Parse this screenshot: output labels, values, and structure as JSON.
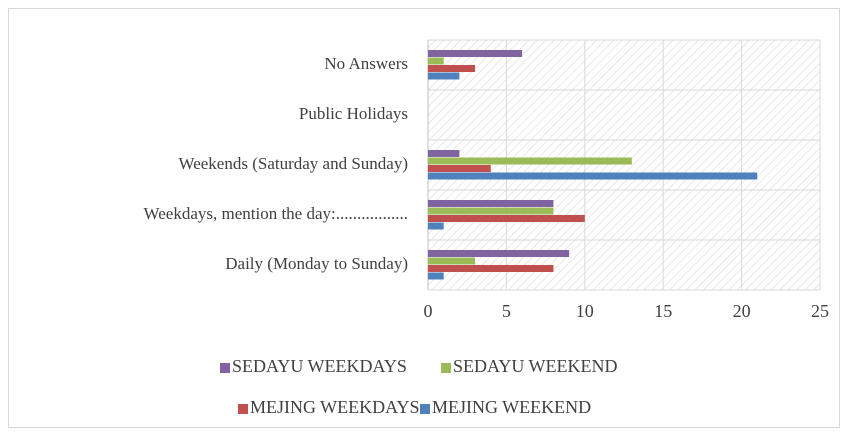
{
  "chart_data": {
    "type": "hbar",
    "categories": [
      "No Answers",
      "Public Holidays",
      "Weekends (Saturday and Sunday)",
      "Weekdays, mention the day:.................",
      "Daily (Monday to Sunday)"
    ],
    "series": [
      {
        "name": "SEDAYU WEEKDAYS",
        "color": "#8064a2",
        "values": [
          6,
          0,
          2,
          8,
          9
        ]
      },
      {
        "name": "SEDAYU WEEKEND",
        "color": "#9bbb59",
        "values": [
          1,
          0,
          13,
          8,
          3
        ]
      },
      {
        "name": "MEJING WEEKDAYS",
        "color": "#c0504d",
        "values": [
          3,
          0,
          4,
          10,
          8
        ]
      },
      {
        "name": "MEJING WEEKEND",
        "color": "#4f81bd",
        "values": [
          2,
          0,
          21,
          1,
          1
        ]
      }
    ],
    "xlim": [
      0,
      25
    ],
    "xticks": [
      0,
      5,
      10,
      15,
      20,
      25
    ],
    "grid": true
  }
}
